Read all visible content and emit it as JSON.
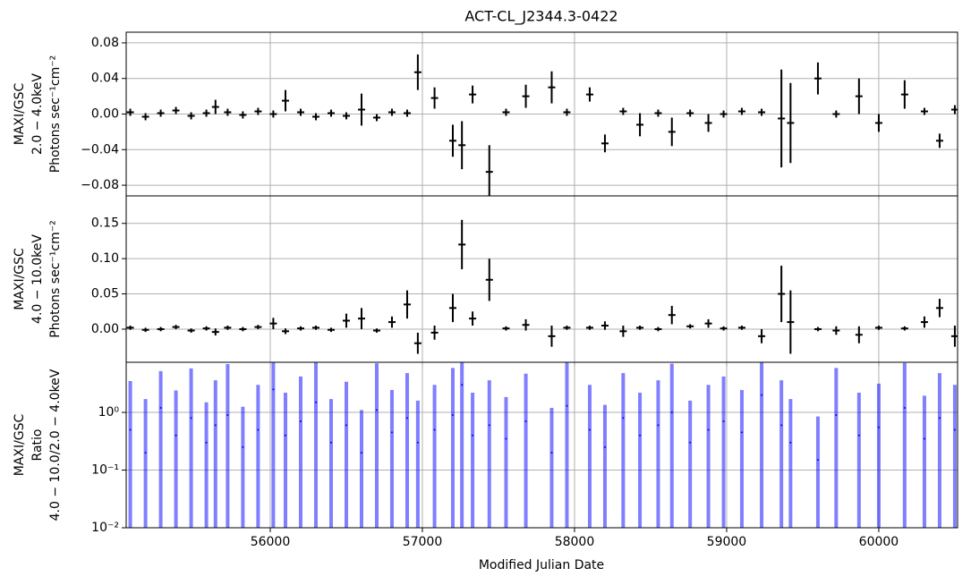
{
  "chart_data": [
    {
      "type": "errorbar",
      "title": "ACT-CL_J2344.3-0422",
      "ylabel": [
        "MAXI/GSC",
        "2.0 − 4.0keV",
        "Photons sec⁻¹cm⁻²"
      ],
      "color": "#000000",
      "log": false,
      "grid": true,
      "xlim": [
        55053,
        60518
      ],
      "xticks": [
        56000,
        57000,
        58000,
        59000,
        60000
      ],
      "ylim": [
        -0.092,
        0.092
      ],
      "yticks": [
        {
          "value": -0.08,
          "label": "−0.08"
        },
        {
          "value": -0.04,
          "label": "−0.04"
        },
        {
          "value": 0,
          "label": "0.00"
        },
        0.04,
        0.08
      ],
      "x": [
        55080,
        55180,
        55280,
        55380,
        55480,
        55580,
        55640,
        55720,
        55820,
        55920,
        56020,
        56100,
        56200,
        56300,
        56400,
        56500,
        56600,
        56700,
        56800,
        56900,
        56970,
        57080,
        57200,
        57260,
        57330,
        57440,
        57550,
        57680,
        57850,
        57950,
        58100,
        58200,
        58320,
        58430,
        58550,
        58640,
        58760,
        58880,
        58980,
        59100,
        59230,
        59360,
        59420,
        59600,
        59720,
        59870,
        60000,
        60170,
        60300,
        60400,
        60500
      ],
      "values": [
        0.002,
        -0.003,
        0.001,
        0.004,
        -0.002,
        0.001,
        0.008,
        0.002,
        -0.001,
        0.003,
        0.0,
        0.015,
        0.002,
        -0.003,
        0.001,
        -0.002,
        0.005,
        -0.004,
        0.002,
        0.001,
        0.047,
        0.018,
        -0.03,
        -0.035,
        0.022,
        -0.065,
        0.002,
        0.02,
        0.03,
        0.002,
        0.022,
        -0.033,
        0.003,
        -0.012,
        0.001,
        -0.02,
        0.001,
        -0.01,
        0.0,
        0.003,
        0.002,
        -0.005,
        -0.01,
        0.04,
        0.0,
        0.02,
        -0.01,
        0.022,
        0.003,
        -0.03,
        0.005
      ],
      "errors": [
        0.004,
        0.004,
        0.004,
        0.004,
        0.004,
        0.004,
        0.008,
        0.004,
        0.004,
        0.004,
        0.004,
        0.012,
        0.004,
        0.004,
        0.004,
        0.004,
        0.018,
        0.004,
        0.004,
        0.004,
        0.02,
        0.012,
        0.018,
        0.027,
        0.01,
        0.03,
        0.004,
        0.013,
        0.018,
        0.004,
        0.008,
        0.01,
        0.004,
        0.013,
        0.004,
        0.016,
        0.004,
        0.01,
        0.004,
        0.004,
        0.004,
        0.055,
        0.045,
        0.018,
        0.004,
        0.02,
        0.01,
        0.016,
        0.004,
        0.008,
        0.005
      ]
    },
    {
      "type": "errorbar",
      "ylabel": [
        "MAXI/GSC",
        "4.0 − 10.0keV",
        "Photons sec⁻¹cm⁻²"
      ],
      "color": "#000000",
      "log": false,
      "grid": true,
      "xlim": [
        55053,
        60518
      ],
      "xticks": [
        56000,
        57000,
        58000,
        59000,
        60000
      ],
      "ylim": [
        -0.047,
        0.189
      ],
      "yticks": [
        {
          "value": 0,
          "label": "0.00"
        },
        0.05,
        {
          "value": 0.1,
          "label": "0.10"
        },
        0.15
      ],
      "x": [
        55080,
        55180,
        55280,
        55380,
        55480,
        55580,
        55640,
        55720,
        55820,
        55920,
        56020,
        56100,
        56200,
        56300,
        56400,
        56500,
        56600,
        56700,
        56800,
        56900,
        56970,
        57080,
        57200,
        57260,
        57330,
        57440,
        57550,
        57680,
        57850,
        57950,
        58100,
        58200,
        58320,
        58430,
        58550,
        58640,
        58760,
        58880,
        58980,
        59100,
        59230,
        59360,
        59420,
        59600,
        59720,
        59870,
        60000,
        60170,
        60300,
        60400,
        60500
      ],
      "values": [
        0.002,
        -0.001,
        0.0,
        0.003,
        -0.002,
        0.001,
        -0.004,
        0.002,
        0.0,
        0.003,
        0.008,
        -0.003,
        0.001,
        0.002,
        -0.001,
        0.012,
        0.015,
        -0.002,
        0.01,
        0.035,
        -0.02,
        -0.005,
        0.03,
        0.12,
        0.015,
        0.07,
        0.001,
        0.006,
        -0.01,
        0.002,
        0.002,
        0.005,
        -0.003,
        0.002,
        0.0,
        0.02,
        0.004,
        0.008,
        0.001,
        0.002,
        -0.01,
        0.05,
        0.01,
        0.0,
        -0.002,
        -0.008,
        0.002,
        0.001,
        0.01,
        0.03,
        -0.01
      ],
      "errors": [
        0.003,
        0.003,
        0.003,
        0.003,
        0.003,
        0.003,
        0.005,
        0.003,
        0.003,
        0.003,
        0.008,
        0.004,
        0.003,
        0.003,
        0.003,
        0.01,
        0.015,
        0.003,
        0.008,
        0.02,
        0.015,
        0.01,
        0.02,
        0.035,
        0.01,
        0.03,
        0.003,
        0.008,
        0.015,
        0.003,
        0.003,
        0.006,
        0.008,
        0.003,
        0.003,
        0.013,
        0.003,
        0.006,
        0.003,
        0.003,
        0.01,
        0.04,
        0.045,
        0.003,
        0.006,
        0.012,
        0.003,
        0.003,
        0.008,
        0.013,
        0.015
      ]
    },
    {
      "type": "errorbar",
      "ylabel": [
        "MAXI/GSC",
        "Ratio",
        "4.0 − 10.0/2.0 − 4.0keV"
      ],
      "xlabel": "Modified Julian Date",
      "color": "#0000ff",
      "log": true,
      "grid": true,
      "xlim": [
        55053,
        60518
      ],
      "xticks": [
        56000,
        57000,
        58000,
        59000,
        60000
      ],
      "ylim": [
        0.01,
        7.4
      ],
      "yticks": [
        {
          "value": 0.01,
          "label": "10⁻²"
        },
        {
          "value": 0.1,
          "label": "10⁻¹"
        },
        {
          "value": 1,
          "label": "10⁰"
        }
      ],
      "x": [
        55080,
        55180,
        55280,
        55380,
        55480,
        55580,
        55640,
        55720,
        55820,
        55920,
        56020,
        56100,
        56200,
        56300,
        56400,
        56500,
        56600,
        56700,
        56800,
        56900,
        56970,
        57080,
        57200,
        57260,
        57330,
        57440,
        57550,
        57680,
        57850,
        57950,
        58100,
        58200,
        58320,
        58430,
        58550,
        58640,
        58760,
        58880,
        58980,
        59100,
        59230,
        59360,
        59420,
        59600,
        59720,
        59870,
        60000,
        60170,
        60300,
        60400,
        60500
      ],
      "values": [
        0.5,
        0.2,
        1.2,
        0.4,
        0.8,
        0.3,
        0.6,
        0.9,
        0.25,
        0.5,
        2.5,
        0.4,
        0.7,
        1.5,
        0.3,
        0.6,
        0.2,
        1.1,
        0.45,
        0.8,
        0.3,
        0.5,
        0.9,
        3.0,
        0.4,
        0.6,
        0.35,
        0.7,
        0.2,
        1.3,
        0.5,
        0.25,
        0.8,
        0.4,
        0.6,
        1.0,
        0.3,
        0.5,
        0.7,
        0.45,
        2.0,
        0.6,
        0.3,
        0.15,
        0.9,
        0.4,
        0.55,
        1.2,
        0.35,
        0.8,
        0.5
      ],
      "errors": [
        3,
        1.5,
        4,
        2,
        5,
        1.2,
        3,
        6,
        1,
        2.5,
        8,
        1.8,
        3.5,
        7,
        1.4,
        2.8,
        0.9,
        6,
        2,
        4,
        1.3,
        2.5,
        5,
        9,
        1.8,
        3,
        1.5,
        4,
        1,
        7,
        2.5,
        1.1,
        4,
        1.8,
        3,
        6,
        1.3,
        2.5,
        3.5,
        2,
        8,
        3,
        1.4,
        0.7,
        5,
        1.8,
        2.6,
        6,
        1.6,
        4,
        2.5
      ]
    }
  ]
}
